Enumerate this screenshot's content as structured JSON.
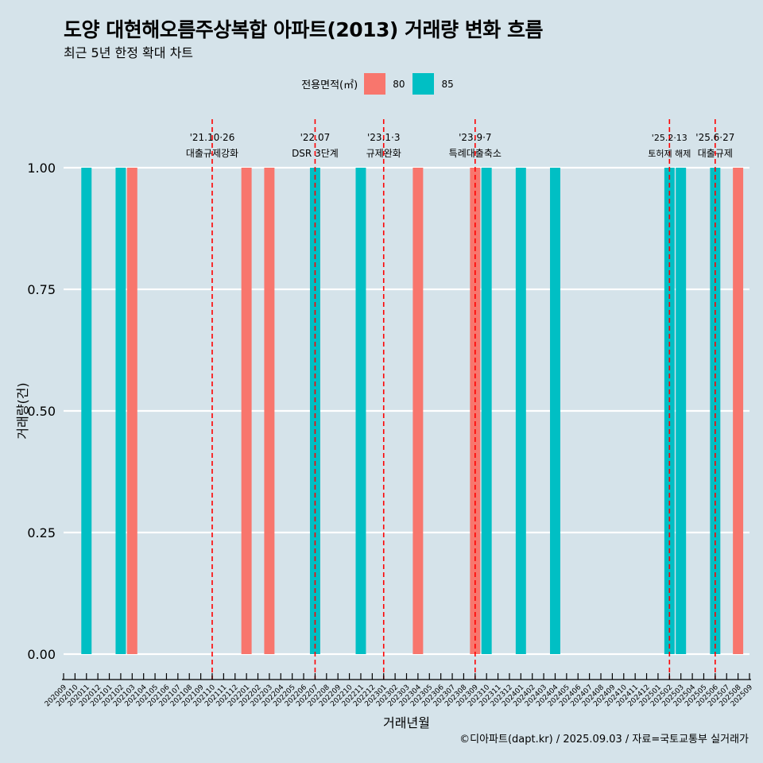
{
  "title": "도양 대현해오름주상복합 아파트(2013) 거래량 변화 흐름",
  "subtitle": "최근 5년 한정 확대 차트",
  "caption": "©디아파트(dapt.kr) / 2025.09.03 / 자료=국토교통부 실거래가",
  "legend": {
    "title": "전용면적(㎡)",
    "items": [
      {
        "label": "80",
        "color": "#f8766d"
      },
      {
        "label": "85",
        "color": "#00bfc4"
      }
    ]
  },
  "chart_data": {
    "type": "bar",
    "xlabel": "거래년월",
    "ylabel": "거래량(건)",
    "ylim": [
      0,
      1
    ],
    "yticks": [
      "0.00",
      "0.25",
      "0.50",
      "0.75",
      "1.00"
    ],
    "grid": true,
    "legend_position": "top",
    "categories": [
      "202009",
      "202010",
      "202011",
      "202012",
      "202101",
      "202102",
      "202103",
      "202104",
      "202105",
      "202106",
      "202107",
      "202108",
      "202109",
      "202110",
      "202111",
      "202112",
      "202201",
      "202202",
      "202203",
      "202204",
      "202205",
      "202206",
      "202207",
      "202208",
      "202209",
      "202210",
      "202211",
      "202212",
      "202301",
      "202302",
      "202303",
      "202304",
      "202305",
      "202306",
      "202307",
      "202308",
      "202309",
      "202310",
      "202311",
      "202312",
      "202401",
      "202402",
      "202403",
      "202404",
      "202405",
      "202406",
      "202407",
      "202408",
      "202409",
      "202410",
      "202411",
      "202412",
      "202501",
      "202502",
      "202503",
      "202504",
      "202505",
      "202506",
      "202507",
      "202508",
      "202509"
    ],
    "series": [
      {
        "name": "80",
        "color": "#f8766d",
        "points": [
          {
            "x": "202103",
            "y": 1
          },
          {
            "x": "202201",
            "y": 1
          },
          {
            "x": "202203",
            "y": 1
          },
          {
            "x": "202304",
            "y": 1
          },
          {
            "x": "202309",
            "y": 1
          },
          {
            "x": "202508",
            "y": 1
          }
        ]
      },
      {
        "name": "85",
        "color": "#00bfc4",
        "points": [
          {
            "x": "202011",
            "y": 1
          },
          {
            "x": "202102",
            "y": 1
          },
          {
            "x": "202207",
            "y": 1
          },
          {
            "x": "202211",
            "y": 1
          },
          {
            "x": "202310",
            "y": 1
          },
          {
            "x": "202401",
            "y": 1
          },
          {
            "x": "202404",
            "y": 1
          },
          {
            "x": "202502",
            "y": 1
          },
          {
            "x": "202503",
            "y": 1
          },
          {
            "x": "202506",
            "y": 1
          }
        ]
      }
    ],
    "annotations": [
      {
        "x": "202110",
        "date": "'21.10·26",
        "label": "대출규제강화"
      },
      {
        "x": "202207",
        "date": "'22.07",
        "label": "DSR 3단계"
      },
      {
        "x": "202301",
        "date": "'23.1·3",
        "label": "규제완화"
      },
      {
        "x": "202309",
        "date": "'23.9·7",
        "label": "특례대출축소"
      },
      {
        "x": "202502",
        "date": "'25.2·13",
        "label": "토허제 해제"
      },
      {
        "x": "202506",
        "date": "'25.6·27",
        "label": "대출규제"
      }
    ]
  }
}
